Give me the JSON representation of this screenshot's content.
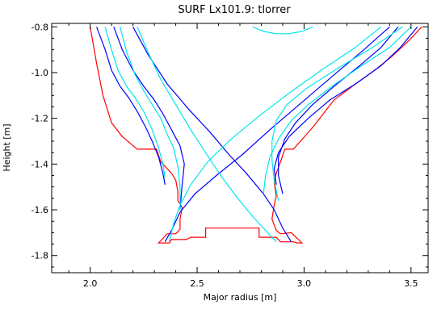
{
  "chart_data": {
    "type": "line",
    "title": "SURF Lx101.9: tlorrer",
    "xlabel": "Major radius [m]",
    "ylabel": "Height [m]",
    "xlim": [
      1.82,
      3.58
    ],
    "ylim": [
      -1.875,
      -0.785
    ],
    "xticks": [
      "2.0",
      "2.5",
      "3.0",
      "3.5"
    ],
    "yticks": [
      "-0.8",
      "-1.0",
      "-1.2",
      "-1.4",
      "-1.6",
      "-1.8"
    ],
    "grid": false,
    "series": [
      {
        "color": "#ff0000",
        "points": [
          [
            2.0,
            -0.8
          ],
          [
            2.03,
            -0.96
          ],
          [
            2.06,
            -1.1
          ],
          [
            2.1,
            -1.22
          ],
          [
            2.15,
            -1.28
          ],
          [
            2.22,
            -1.335
          ],
          [
            2.31,
            -1.335
          ],
          [
            2.33,
            -1.39
          ],
          [
            2.38,
            -1.44
          ],
          [
            2.4,
            -1.47
          ],
          [
            2.41,
            -1.52
          ],
          [
            2.41,
            -1.56
          ],
          [
            2.43,
            -1.59
          ],
          [
            2.42,
            -1.64
          ],
          [
            2.42,
            -1.685
          ],
          [
            2.4,
            -1.705
          ],
          [
            2.36,
            -1.705
          ],
          [
            2.32,
            -1.745
          ],
          [
            2.37,
            -1.745
          ],
          [
            2.38,
            -1.73
          ],
          [
            2.45,
            -1.73
          ],
          [
            2.47,
            -1.72
          ],
          [
            2.54,
            -1.72
          ],
          [
            2.54,
            -1.68
          ],
          [
            2.79,
            -1.68
          ],
          [
            2.79,
            -1.72
          ],
          [
            2.87,
            -1.72
          ],
          [
            2.89,
            -1.74
          ],
          [
            2.95,
            -1.74
          ],
          [
            2.97,
            -1.745
          ],
          [
            2.99,
            -1.745
          ],
          [
            2.94,
            -1.7
          ],
          [
            2.89,
            -1.705
          ],
          [
            2.87,
            -1.69
          ],
          [
            2.85,
            -1.64
          ],
          [
            2.86,
            -1.58
          ],
          [
            2.87,
            -1.54
          ],
          [
            2.86,
            -1.48
          ],
          [
            2.87,
            -1.44
          ],
          [
            2.89,
            -1.39
          ],
          [
            2.91,
            -1.335
          ],
          [
            2.95,
            -1.335
          ],
          [
            3.04,
            -1.24
          ],
          [
            3.14,
            -1.12
          ],
          [
            3.24,
            -1.05
          ],
          [
            3.33,
            -0.99
          ],
          [
            3.41,
            -0.93
          ],
          [
            3.49,
            -0.86
          ],
          [
            3.55,
            -0.8
          ]
        ]
      },
      {
        "color": "#0000ff",
        "points": [
          [
            2.03,
            -0.8
          ],
          [
            2.07,
            -0.9
          ],
          [
            2.1,
            -0.99
          ],
          [
            2.14,
            -1.06
          ],
          [
            2.18,
            -1.11
          ],
          [
            2.22,
            -1.17
          ],
          [
            2.26,
            -1.24
          ],
          [
            2.29,
            -1.3
          ],
          [
            2.32,
            -1.37
          ],
          [
            2.34,
            -1.44
          ],
          [
            2.35,
            -1.49
          ]
        ]
      },
      {
        "color": "#0000ff",
        "points": [
          [
            2.11,
            -0.8
          ],
          [
            2.15,
            -0.9
          ],
          [
            2.2,
            -0.99
          ],
          [
            2.25,
            -1.06
          ],
          [
            2.3,
            -1.12
          ],
          [
            2.34,
            -1.18
          ],
          [
            2.38,
            -1.25
          ],
          [
            2.42,
            -1.32
          ],
          [
            2.44,
            -1.4
          ],
          [
            2.43,
            -1.49
          ],
          [
            2.42,
            -1.6
          ]
        ]
      },
      {
        "color": "#0000ff",
        "points": [
          [
            2.2,
            -0.8
          ],
          [
            2.27,
            -0.92
          ],
          [
            2.36,
            -1.05
          ],
          [
            2.46,
            -1.16
          ],
          [
            2.56,
            -1.26
          ],
          [
            2.65,
            -1.36
          ],
          [
            2.73,
            -1.44
          ],
          [
            2.81,
            -1.53
          ],
          [
            2.86,
            -1.6
          ],
          [
            2.9,
            -1.68
          ],
          [
            2.94,
            -1.74
          ]
        ]
      },
      {
        "color": "#0000ff",
        "points": [
          [
            3.53,
            -0.8
          ],
          [
            3.45,
            -0.89
          ],
          [
            3.36,
            -0.97
          ],
          [
            3.24,
            -1.05
          ],
          [
            3.12,
            -1.12
          ],
          [
            3.02,
            -1.2
          ],
          [
            2.93,
            -1.28
          ],
          [
            2.88,
            -1.35
          ],
          [
            2.86,
            -1.42
          ],
          [
            2.87,
            -1.49
          ]
        ]
      },
      {
        "color": "#0000ff",
        "points": [
          [
            3.44,
            -0.8
          ],
          [
            3.36,
            -0.89
          ],
          [
            3.26,
            -0.97
          ],
          [
            3.14,
            -1.06
          ],
          [
            3.04,
            -1.14
          ],
          [
            2.96,
            -1.22
          ],
          [
            2.91,
            -1.29
          ],
          [
            2.88,
            -1.37
          ],
          [
            2.88,
            -1.45
          ],
          [
            2.9,
            -1.53
          ]
        ]
      },
      {
        "color": "#0000ff",
        "points": [
          [
            3.4,
            -0.8
          ],
          [
            3.28,
            -0.9
          ],
          [
            3.14,
            -1.01
          ],
          [
            2.99,
            -1.13
          ],
          [
            2.84,
            -1.25
          ],
          [
            2.71,
            -1.36
          ],
          [
            2.59,
            -1.45
          ],
          [
            2.49,
            -1.53
          ],
          [
            2.42,
            -1.61
          ],
          [
            2.38,
            -1.69
          ],
          [
            2.35,
            -1.74
          ]
        ]
      },
      {
        "color": "#00e5ee",
        "points": [
          [
            2.07,
            -0.8
          ],
          [
            2.1,
            -0.9
          ],
          [
            2.13,
            -0.99
          ],
          [
            2.17,
            -1.06
          ],
          [
            2.21,
            -1.11
          ],
          [
            2.25,
            -1.17
          ],
          [
            2.29,
            -1.25
          ],
          [
            2.32,
            -1.33
          ],
          [
            2.34,
            -1.4
          ],
          [
            2.35,
            -1.46
          ]
        ]
      },
      {
        "color": "#00e5ee",
        "points": [
          [
            2.14,
            -0.8
          ],
          [
            2.17,
            -0.91
          ],
          [
            2.21,
            -1.01
          ],
          [
            2.25,
            -1.08
          ],
          [
            2.29,
            -1.14
          ],
          [
            2.33,
            -1.2
          ],
          [
            2.36,
            -1.27
          ],
          [
            2.39,
            -1.33
          ],
          [
            2.41,
            -1.41
          ],
          [
            2.42,
            -1.5
          ],
          [
            2.42,
            -1.6
          ]
        ]
      },
      {
        "color": "#00e5ee",
        "points": [
          [
            2.22,
            -0.8
          ],
          [
            2.27,
            -0.91
          ],
          [
            2.33,
            -1.03
          ],
          [
            2.4,
            -1.14
          ],
          [
            2.47,
            -1.25
          ],
          [
            2.54,
            -1.35
          ],
          [
            2.61,
            -1.45
          ],
          [
            2.69,
            -1.55
          ],
          [
            2.76,
            -1.63
          ],
          [
            2.82,
            -1.69
          ],
          [
            2.87,
            -1.74
          ]
        ]
      },
      {
        "color": "#00e5ee",
        "points": [
          [
            3.5,
            -0.8
          ],
          [
            3.4,
            -0.89
          ],
          [
            3.27,
            -0.97
          ],
          [
            3.13,
            -1.06
          ],
          [
            3.02,
            -1.14
          ],
          [
            2.94,
            -1.21
          ],
          [
            2.88,
            -1.29
          ],
          [
            2.84,
            -1.37
          ],
          [
            2.82,
            -1.45
          ],
          [
            2.81,
            -1.53
          ]
        ]
      },
      {
        "color": "#00e5ee",
        "points": [
          [
            3.46,
            -0.8
          ],
          [
            3.32,
            -0.89
          ],
          [
            3.16,
            -0.98
          ],
          [
            3.01,
            -1.07
          ],
          [
            2.92,
            -1.14
          ],
          [
            2.87,
            -1.21
          ],
          [
            2.85,
            -1.3
          ],
          [
            2.85,
            -1.38
          ],
          [
            2.86,
            -1.47
          ],
          [
            2.88,
            -1.56
          ]
        ]
      },
      {
        "color": "#00e5ee",
        "points": [
          [
            3.36,
            -0.8
          ],
          [
            3.24,
            -0.89
          ],
          [
            3.08,
            -0.99
          ],
          [
            2.93,
            -1.09
          ],
          [
            2.79,
            -1.19
          ],
          [
            2.66,
            -1.29
          ],
          [
            2.55,
            -1.39
          ],
          [
            2.47,
            -1.49
          ],
          [
            2.42,
            -1.58
          ],
          [
            2.39,
            -1.66
          ],
          [
            2.37,
            -1.74
          ]
        ]
      },
      {
        "color": "#00e5ee",
        "points": [
          [
            2.76,
            -0.8
          ],
          [
            2.81,
            -0.82
          ],
          [
            2.87,
            -0.83
          ],
          [
            2.93,
            -0.83
          ],
          [
            2.99,
            -0.82
          ],
          [
            3.04,
            -0.8
          ]
        ]
      }
    ]
  }
}
